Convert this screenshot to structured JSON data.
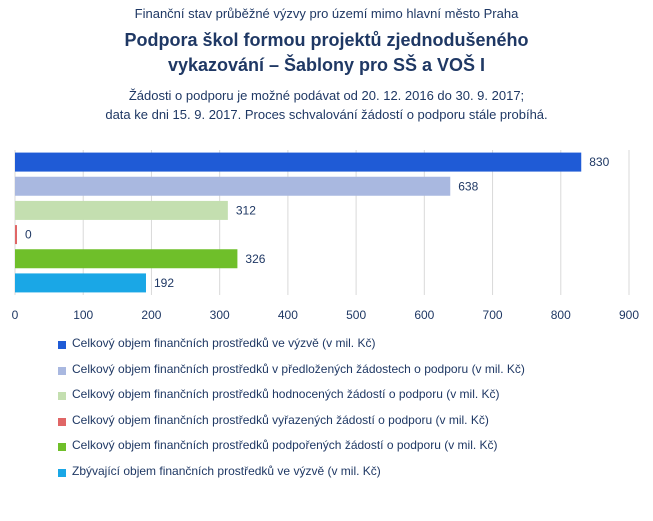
{
  "header": {
    "supertitle": "Finanční stav průběžné výzvy pro území mimo hlavní město Praha",
    "title_line1": "Podpora škol formou projektů zjednodušeného",
    "title_line2": "vykazování – Šablony pro SŠ a VOŠ I",
    "subtitle_line1": "Žádosti o podporu je možné podávat od 20. 12. 2016 do 30. 9. 2017;",
    "subtitle_line2": "data ke dni 15. 9. 2017. Proces schvalování žádostí o podporu stále probíhá."
  },
  "chart_data": {
    "type": "bar",
    "orientation": "horizontal",
    "xlim": [
      0,
      900
    ],
    "x_ticks": [
      "0",
      "100",
      "200",
      "300",
      "400",
      "500",
      "600",
      "700",
      "800",
      "900"
    ],
    "grid": true,
    "legend_position": "bottom",
    "series": [
      {
        "name": "Celkový objem finančních prostředků ve výzvě (v mil. Kč)",
        "value": 830,
        "label": "830",
        "color": "#1f5bd6"
      },
      {
        "name": "Celkový objem finančních prostředků v předložených žádostech o podporu (v mil. Kč)",
        "value": 638,
        "label": "638",
        "color": "#a9b8e0"
      },
      {
        "name": "Celkový objem finančních prostředků hodnocených žádostí o podporu (v mil. Kč)",
        "value": 312,
        "label": "312",
        "color": "#c4dfb0"
      },
      {
        "name": "Celkový objem finančních prostředků vyřazených žádostí o podporu (v mil. Kč)",
        "value": 0,
        "label": "0",
        "color": "#e06666"
      },
      {
        "name": "Celkový objem finančních prostředků podpořených žádostí o podporu (v mil. Kč)",
        "value": 326,
        "label": "326",
        "color": "#6fbf2a"
      },
      {
        "name": "Zbývající objem finančních prostředků ve výzvě (v mil. Kč)",
        "value": 192,
        "label": "192",
        "color": "#1aa7e6"
      }
    ]
  }
}
